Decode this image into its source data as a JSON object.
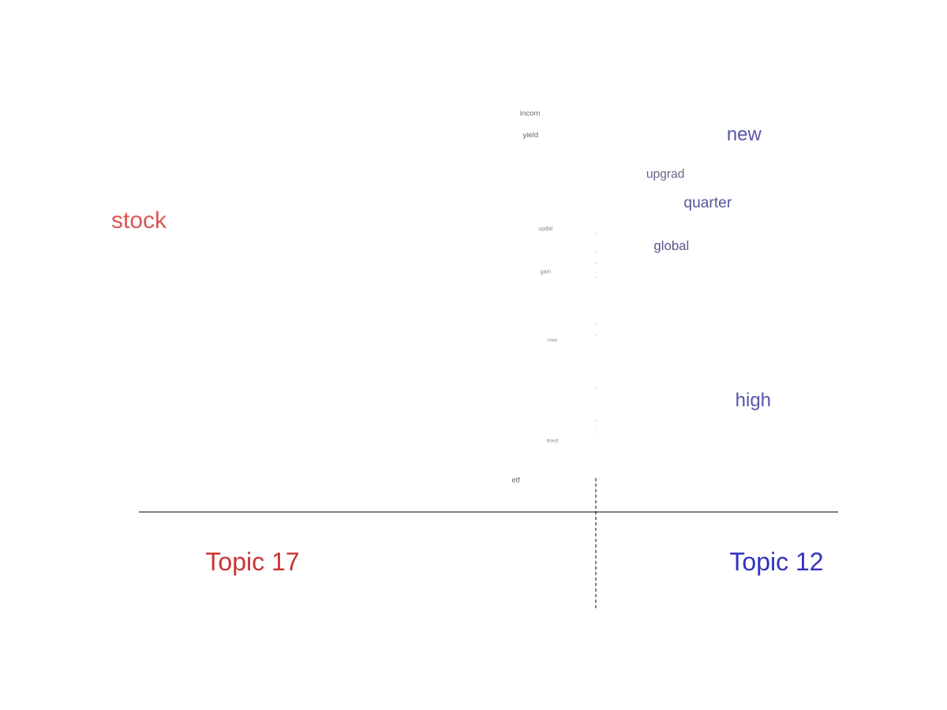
{
  "chart_data": {
    "type": "scatter",
    "title": "",
    "xlabel": "",
    "ylabel": "",
    "grid": false,
    "x_divider": 0,
    "topic_labels": {
      "left": {
        "text": "Topic 17",
        "color": "#cc3333"
      },
      "right": {
        "text": "Topic 12",
        "color": "#3333bb"
      }
    },
    "words": [
      {
        "text": "stock",
        "score": -1.0,
        "rank": 0.7,
        "weight": 1.0,
        "color": "#dd5555"
      },
      {
        "text": "new",
        "score": 0.49,
        "rank": 0.94,
        "weight": 0.75,
        "color": "#5555aa"
      },
      {
        "text": "high",
        "score": 0.52,
        "rank": 0.2,
        "weight": 0.75,
        "color": "#5555aa"
      },
      {
        "text": "quarter",
        "score": 0.37,
        "rank": 0.75,
        "weight": 0.55,
        "color": "#555599"
      },
      {
        "text": "upgrad",
        "score": 0.23,
        "rank": 0.83,
        "weight": 0.4,
        "color": "#666688"
      },
      {
        "text": "global",
        "score": 0.25,
        "rank": 0.63,
        "weight": 0.45,
        "color": "#555588"
      },
      {
        "text": "incom",
        "score": -0.144,
        "rank": 1.0,
        "weight": 0.15,
        "color": "#666666"
      },
      {
        "text": "yield",
        "score": -0.143,
        "rank": 0.94,
        "weight": 0.15,
        "color": "#666666"
      },
      {
        "text": "updat",
        "score": -0.11,
        "rank": 0.68,
        "weight": 0.05,
        "color": "#888888"
      },
      {
        "text": "gain",
        "score": -0.11,
        "rank": 0.56,
        "weight": 0.05,
        "color": "#888888"
      },
      {
        "text": "now",
        "score": -0.095,
        "rank": 0.37,
        "weight": 0.02,
        "color": "#888888"
      },
      {
        "text": "bond",
        "score": -0.095,
        "rank": 0.09,
        "weight": 0.02,
        "color": "#888888"
      },
      {
        "text": "etf",
        "score": -0.175,
        "rank": -0.02,
        "weight": 0.14,
        "color": "#666666"
      }
    ],
    "near_zero_marks": [
      0.66,
      0.61,
      0.58,
      0.54,
      0.41,
      0.38,
      0.23,
      0.14,
      0.11
    ]
  }
}
